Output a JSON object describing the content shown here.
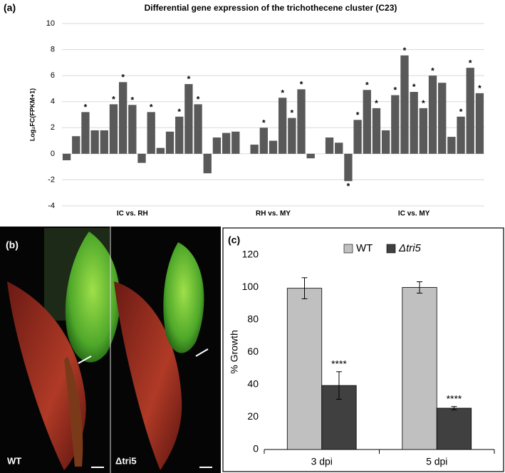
{
  "chart_data": [
    {
      "type": "bar",
      "panel": "(a)",
      "title": "Differential gene expression of the trichothecene cluster (C23)",
      "y_label": "Log₂FC(FPKM+1)",
      "categories": [
        null,
        null,
        null,
        null,
        null,
        null,
        null,
        "IC vs. RH",
        null,
        null,
        null,
        null,
        null,
        null,
        null,
        null,
        null,
        null,
        null,
        null,
        null,
        null,
        "RH vs. MY",
        null,
        null,
        null,
        null,
        null,
        null,
        null,
        null,
        null,
        null,
        null,
        null,
        null,
        null,
        "IC vs. MY",
        null,
        null,
        null,
        null,
        null,
        null,
        null
      ],
      "values": [
        -0.5,
        1.35,
        3.2,
        1.8,
        1.8,
        3.8,
        5.5,
        3.75,
        -0.7,
        3.2,
        0.45,
        1.7,
        2.85,
        5.35,
        3.8,
        -1.5,
        1.25,
        1.6,
        1.7,
        0,
        0.7,
        2.0,
        1.0,
        4.3,
        2.75,
        4.95,
        -0.35,
        0,
        1.25,
        0.85,
        -2.1,
        2.6,
        4.9,
        3.5,
        1.8,
        4.5,
        7.55,
        4.75,
        3.5,
        6.0,
        5.45,
        1.3,
        2.85,
        6.6,
        4.65
      ],
      "significance": [
        null,
        null,
        "*",
        null,
        null,
        "*",
        "*",
        "*",
        null,
        "*",
        null,
        null,
        "*",
        "*",
        "*",
        null,
        null,
        null,
        null,
        null,
        null,
        "*",
        null,
        "*",
        "*",
        "*",
        null,
        null,
        null,
        null,
        "*",
        "*",
        "*",
        "*",
        null,
        "*",
        "*",
        "*",
        "*",
        "*",
        null,
        null,
        "*",
        "*",
        "*"
      ],
      "color": "#595959",
      "ylim": [
        -4,
        10
      ],
      "yticks": [
        -4,
        -2,
        0,
        2,
        4,
        6,
        8,
        10
      ],
      "grid": true
    },
    {
      "type": "grouped_bar",
      "panel": "(c)",
      "y_label": "% Growth",
      "categories": [
        "3 dpi",
        "5 dpi"
      ],
      "series": [
        {
          "name": "WT",
          "color": "#c0c0c0",
          "values": [
            99.5,
            100
          ],
          "errors": [
            6.5,
            3.5
          ],
          "value_labels": [
            null,
            null
          ]
        },
        {
          "name": "Δtri5",
          "color": "#404040",
          "values": [
            39.5,
            25.5
          ],
          "errors": [
            8.5,
            1
          ],
          "value_labels": [
            "****",
            "****"
          ]
        }
      ],
      "ylim": [
        0,
        120
      ],
      "yticks": [
        0,
        20,
        40,
        60,
        80,
        100,
        120
      ],
      "grid": false,
      "legend": "top"
    }
  ],
  "image_panel": {
    "panel": "(b)",
    "labels": [
      "WT",
      "Δtri5"
    ]
  }
}
